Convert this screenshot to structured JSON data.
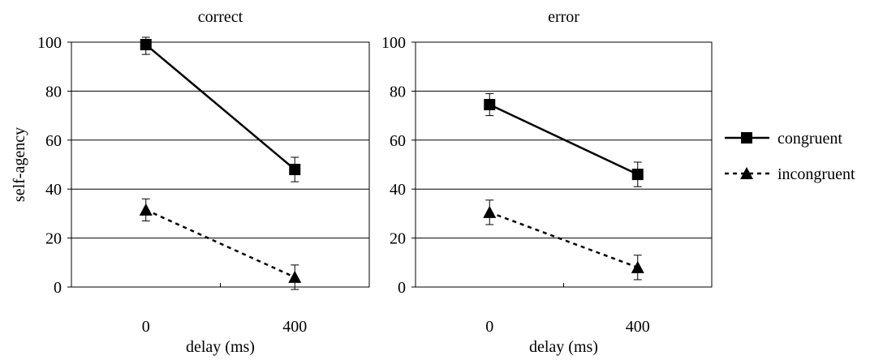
{
  "chart_data": [
    {
      "type": "line",
      "title": "correct",
      "xlabel": "delay (ms)",
      "ylabel": "self-agency",
      "categories": [
        "0",
        "400"
      ],
      "ylim": [
        0,
        100
      ],
      "yticks": [
        "0",
        "20",
        "40",
        "60",
        "80",
        "100"
      ],
      "grid": true,
      "series": [
        {
          "name": "congruent",
          "values": [
            99,
            48
          ],
          "error": [
            4,
            5
          ],
          "marker": "square",
          "line": "solid"
        },
        {
          "name": "incongruent",
          "values": [
            31.5,
            4
          ],
          "error": [
            4.5,
            5
          ],
          "marker": "triangle",
          "line": "dotted"
        }
      ]
    },
    {
      "type": "line",
      "title": "error",
      "xlabel": "delay (ms)",
      "ylabel": "",
      "categories": [
        "0",
        "400"
      ],
      "ylim": [
        0,
        100
      ],
      "yticks": [
        "0",
        "20",
        "40",
        "60",
        "80",
        "100"
      ],
      "grid": true,
      "series": [
        {
          "name": "congruent",
          "values": [
            74.5,
            46
          ],
          "error": [
            4.5,
            5
          ],
          "marker": "square",
          "line": "solid"
        },
        {
          "name": "incongruent",
          "values": [
            30.5,
            8
          ],
          "error": [
            5,
            5
          ],
          "marker": "triangle",
          "line": "dotted"
        }
      ]
    }
  ],
  "legend": {
    "placement": "right",
    "items": [
      {
        "label": "congruent",
        "marker": "square",
        "line": "solid"
      },
      {
        "label": "incongruent",
        "marker": "triangle",
        "line": "dotted"
      }
    ]
  },
  "colors": {
    "line": "#000000",
    "grid": "#000000",
    "background": "#ffffff"
  }
}
